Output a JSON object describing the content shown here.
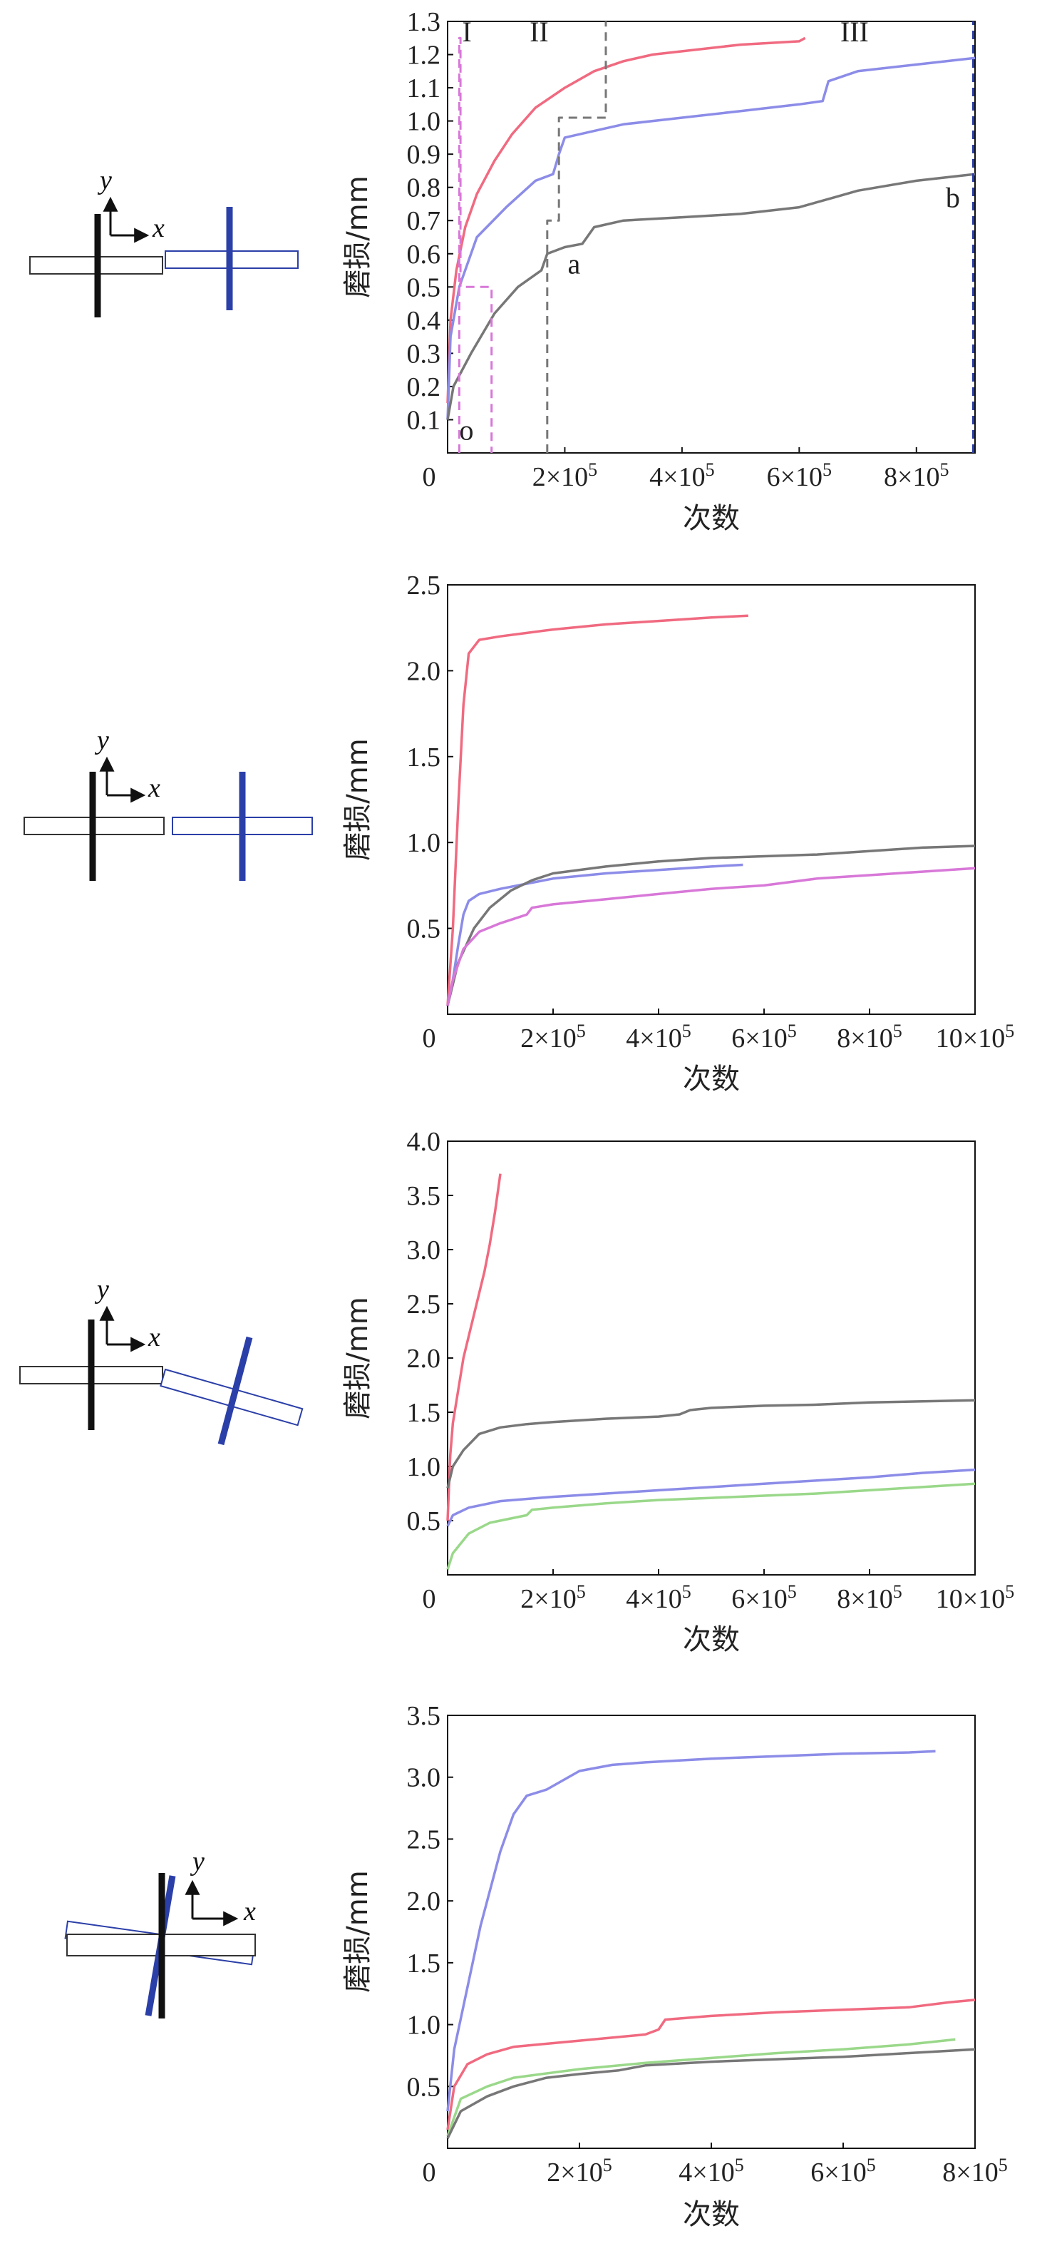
{
  "colors": {
    "red": "#f06a80",
    "blue": "#8c8ce8",
    "gray": "#777777",
    "green": "#9ad88a",
    "magenta": "#d878d8",
    "dark_blue": "#2b3fa8",
    "black": "#111111"
  },
  "schematic_labels": {
    "y": "y",
    "x": "x"
  },
  "chart_data": [
    {
      "type": "line",
      "xlabel": "次数",
      "ylabel": "磨损/mm",
      "xlim": [
        0,
        900000
      ],
      "ylim": [
        0,
        1.3
      ],
      "x_ticks": [
        {
          "v": 0,
          "label": "0"
        },
        {
          "v": 200000,
          "base": "2×10",
          "exp": "5"
        },
        {
          "v": 400000,
          "base": "4×10",
          "exp": "5"
        },
        {
          "v": 600000,
          "base": "6×10",
          "exp": "5"
        },
        {
          "v": 800000,
          "base": "8×10",
          "exp": "5"
        }
      ],
      "y_ticks": [
        "0.1",
        "0.2",
        "0.3",
        "0.4",
        "0.5",
        "0.6",
        "0.7",
        "0.8",
        "0.9",
        "1.0",
        "1.1",
        "1.2",
        "1.3"
      ],
      "annotations": [
        {
          "text": "I",
          "x": 25000,
          "y": 1.24
        },
        {
          "text": "II",
          "x": 140000,
          "y": 1.24
        },
        {
          "text": "III",
          "x": 670000,
          "y": 1.24
        },
        {
          "text": "o",
          "x": 20000,
          "y": 0.04
        },
        {
          "text": "a",
          "x": 205000,
          "y": 0.54
        },
        {
          "text": "b",
          "x": 850000,
          "y": 0.74
        }
      ],
      "series": [
        {
          "color": "#f06a80",
          "style": "solid",
          "x": [
            0,
            5000,
            15000,
            30000,
            50000,
            80000,
            110000,
            150000,
            200000,
            250000,
            300000,
            350000,
            400000,
            450000,
            500000,
            550000,
            600000,
            610000
          ],
          "y": [
            0.15,
            0.4,
            0.55,
            0.68,
            0.78,
            0.88,
            0.96,
            1.04,
            1.1,
            1.15,
            1.18,
            1.2,
            1.21,
            1.22,
            1.23,
            1.235,
            1.24,
            1.25
          ]
        },
        {
          "color": "#8c8ce8",
          "style": "solid",
          "x": [
            0,
            5000,
            20000,
            50000,
            100000,
            150000,
            180000,
            190000,
            200000,
            250000,
            300000,
            400000,
            500000,
            600000,
            640000,
            650000,
            700000,
            800000,
            900000
          ],
          "y": [
            0.1,
            0.35,
            0.5,
            0.65,
            0.74,
            0.82,
            0.84,
            0.9,
            0.95,
            0.97,
            0.99,
            1.01,
            1.03,
            1.05,
            1.06,
            1.12,
            1.15,
            1.17,
            1.19
          ]
        },
        {
          "color": "#777777",
          "style": "solid",
          "x": [
            0,
            10000,
            40000,
            80000,
            120000,
            160000,
            170000,
            200000,
            230000,
            250000,
            300000,
            400000,
            500000,
            600000,
            660000,
            700000,
            800000,
            900000
          ],
          "y": [
            0.1,
            0.2,
            0.3,
            0.42,
            0.5,
            0.55,
            0.6,
            0.62,
            0.63,
            0.68,
            0.7,
            0.71,
            0.72,
            0.74,
            0.77,
            0.79,
            0.82,
            0.84
          ]
        },
        {
          "color": "#d878d8",
          "style": "dashed",
          "x": [
            20000,
            20000,
            22000,
            22000,
            50000,
            50000,
            75000,
            75000
          ],
          "y": [
            0,
            1.25,
            1.25,
            0.5,
            0.5,
            0.5,
            0.5,
            0
          ]
        },
        {
          "color": "#777777",
          "style": "dashed",
          "x": [
            170000,
            170000,
            190000,
            190000,
            205000,
            205000,
            270000,
            270000
          ],
          "y": [
            0,
            0.7,
            0.7,
            1.01,
            1.01,
            1.01,
            1.01,
            1.3
          ]
        },
        {
          "color": "#2b3fa8",
          "style": "dashed",
          "x": [
            897000,
            897000
          ],
          "y": [
            0,
            1.3
          ]
        }
      ]
    },
    {
      "type": "line",
      "xlabel": "次数",
      "ylabel": "磨损/mm",
      "xlim": [
        0,
        1000000
      ],
      "ylim": [
        0,
        2.5
      ],
      "x_ticks": [
        {
          "v": 0,
          "label": "0"
        },
        {
          "v": 200000,
          "base": "2×10",
          "exp": "5"
        },
        {
          "v": 400000,
          "base": "4×10",
          "exp": "5"
        },
        {
          "v": 600000,
          "base": "6×10",
          "exp": "5"
        },
        {
          "v": 800000,
          "base": "8×10",
          "exp": "5"
        },
        {
          "v": 1000000,
          "base": "10×10",
          "exp": "5"
        }
      ],
      "y_ticks": [
        "0.5",
        "1.0",
        "1.5",
        "2.0",
        "2.5"
      ],
      "annotations": [],
      "series": [
        {
          "color": "#f06a80",
          "style": "solid",
          "x": [
            0,
            10000,
            20000,
            30000,
            40000,
            60000,
            100000,
            200000,
            300000,
            400000,
            500000,
            570000
          ],
          "y": [
            0.05,
            0.5,
            1.2,
            1.8,
            2.1,
            2.18,
            2.2,
            2.24,
            2.27,
            2.29,
            2.31,
            2.32
          ]
        },
        {
          "color": "#8c8ce8",
          "style": "solid",
          "x": [
            0,
            10000,
            20000,
            30000,
            40000,
            60000,
            100000,
            150000,
            200000,
            300000,
            400000,
            500000,
            560000
          ],
          "y": [
            0.05,
            0.2,
            0.4,
            0.58,
            0.66,
            0.7,
            0.73,
            0.76,
            0.79,
            0.82,
            0.84,
            0.86,
            0.87
          ]
        },
        {
          "color": "#777777",
          "style": "solid",
          "x": [
            0,
            20000,
            50000,
            80000,
            120000,
            160000,
            200000,
            300000,
            400000,
            500000,
            600000,
            700000,
            800000,
            900000,
            1000000
          ],
          "y": [
            0.05,
            0.3,
            0.5,
            0.62,
            0.72,
            0.78,
            0.82,
            0.86,
            0.89,
            0.91,
            0.92,
            0.93,
            0.95,
            0.97,
            0.98
          ]
        },
        {
          "color": "#d878d8",
          "style": "solid",
          "x": [
            0,
            10000,
            30000,
            60000,
            100000,
            150000,
            160000,
            200000,
            300000,
            400000,
            500000,
            600000,
            650000,
            700000,
            800000,
            900000,
            1000000
          ],
          "y": [
            0.05,
            0.2,
            0.38,
            0.48,
            0.53,
            0.58,
            0.62,
            0.64,
            0.67,
            0.7,
            0.73,
            0.75,
            0.77,
            0.79,
            0.81,
            0.83,
            0.85
          ]
        }
      ]
    },
    {
      "type": "line",
      "xlabel": "次数",
      "ylabel": "磨损/mm",
      "xlim": [
        0,
        1000000
      ],
      "ylim": [
        0,
        4.0
      ],
      "x_ticks": [
        {
          "v": 0,
          "label": "0"
        },
        {
          "v": 200000,
          "base": "2×10",
          "exp": "5"
        },
        {
          "v": 400000,
          "base": "4×10",
          "exp": "5"
        },
        {
          "v": 600000,
          "base": "6×10",
          "exp": "5"
        },
        {
          "v": 800000,
          "base": "8×10",
          "exp": "5"
        },
        {
          "v": 1000000,
          "base": "10×10",
          "exp": "5"
        }
      ],
      "y_ticks": [
        "0.5",
        "1.0",
        "1.5",
        "2.0",
        "2.5",
        "3.0",
        "3.5",
        "4.0"
      ],
      "annotations": [],
      "series": [
        {
          "color": "#f06a80",
          "style": "solid",
          "x": [
            0,
            5000,
            10000,
            20000,
            30000,
            40000,
            50000,
            60000,
            70000,
            80000,
            90000,
            100000
          ],
          "y": [
            0.5,
            1.1,
            1.4,
            1.7,
            2.0,
            2.2,
            2.4,
            2.6,
            2.8,
            3.05,
            3.35,
            3.7
          ]
        },
        {
          "color": "#777777",
          "style": "solid",
          "x": [
            0,
            10000,
            30000,
            60000,
            100000,
            150000,
            200000,
            300000,
            400000,
            440000,
            460000,
            500000,
            600000,
            700000,
            800000,
            900000,
            1000000
          ],
          "y": [
            0.8,
            1.0,
            1.15,
            1.3,
            1.36,
            1.39,
            1.41,
            1.44,
            1.46,
            1.48,
            1.52,
            1.54,
            1.56,
            1.57,
            1.59,
            1.6,
            1.61
          ]
        },
        {
          "color": "#8c8ce8",
          "style": "solid",
          "x": [
            0,
            10000,
            40000,
            100000,
            200000,
            300000,
            400000,
            500000,
            600000,
            700000,
            800000,
            900000,
            1000000
          ],
          "y": [
            0.45,
            0.55,
            0.62,
            0.68,
            0.72,
            0.75,
            0.78,
            0.81,
            0.84,
            0.87,
            0.9,
            0.94,
            0.97
          ]
        },
        {
          "color": "#9ad88a",
          "style": "solid",
          "x": [
            0,
            10000,
            40000,
            80000,
            150000,
            160000,
            200000,
            300000,
            400000,
            500000,
            600000,
            700000,
            800000,
            900000,
            1000000
          ],
          "y": [
            0.05,
            0.2,
            0.38,
            0.48,
            0.55,
            0.6,
            0.62,
            0.66,
            0.69,
            0.71,
            0.73,
            0.75,
            0.78,
            0.81,
            0.84
          ]
        }
      ]
    },
    {
      "type": "line",
      "xlabel": "次数",
      "ylabel": "磨损/mm",
      "xlim": [
        0,
        800000
      ],
      "ylim": [
        0,
        3.5
      ],
      "x_ticks": [
        {
          "v": 0,
          "label": "0"
        },
        {
          "v": 200000,
          "base": "2×10",
          "exp": "5"
        },
        {
          "v": 400000,
          "base": "4×10",
          "exp": "5"
        },
        {
          "v": 600000,
          "base": "6×10",
          "exp": "5"
        },
        {
          "v": 800000,
          "base": "8×10",
          "exp": "5"
        }
      ],
      "y_ticks": [
        "0.5",
        "1.0",
        "1.5",
        "2.0",
        "2.5",
        "3.0",
        "3.5"
      ],
      "annotations": [],
      "series": [
        {
          "color": "#8c8ce8",
          "style": "solid",
          "x": [
            0,
            10000,
            30000,
            50000,
            80000,
            100000,
            120000,
            150000,
            200000,
            250000,
            300000,
            400000,
            500000,
            600000,
            700000,
            740000
          ],
          "y": [
            0.3,
            0.8,
            1.3,
            1.8,
            2.4,
            2.7,
            2.85,
            2.9,
            3.05,
            3.1,
            3.12,
            3.15,
            3.17,
            3.19,
            3.2,
            3.21
          ]
        },
        {
          "color": "#f06a80",
          "style": "solid",
          "x": [
            0,
            10000,
            30000,
            60000,
            100000,
            200000,
            300000,
            320000,
            330000,
            400000,
            500000,
            600000,
            700000,
            760000,
            800000
          ],
          "y": [
            0.15,
            0.5,
            0.68,
            0.76,
            0.82,
            0.87,
            0.92,
            0.96,
            1.04,
            1.07,
            1.1,
            1.12,
            1.14,
            1.18,
            1.2
          ]
        },
        {
          "color": "#9ad88a",
          "style": "solid",
          "x": [
            0,
            20000,
            60000,
            100000,
            200000,
            300000,
            400000,
            500000,
            600000,
            700000,
            770000
          ],
          "y": [
            0.1,
            0.4,
            0.5,
            0.57,
            0.64,
            0.69,
            0.73,
            0.77,
            0.8,
            0.84,
            0.88
          ]
        },
        {
          "color": "#777777",
          "style": "solid",
          "x": [
            0,
            20000,
            60000,
            100000,
            150000,
            200000,
            260000,
            300000,
            400000,
            500000,
            600000,
            700000,
            800000
          ],
          "y": [
            0.08,
            0.3,
            0.42,
            0.5,
            0.57,
            0.6,
            0.63,
            0.67,
            0.7,
            0.72,
            0.74,
            0.77,
            0.8
          ]
        }
      ]
    }
  ]
}
